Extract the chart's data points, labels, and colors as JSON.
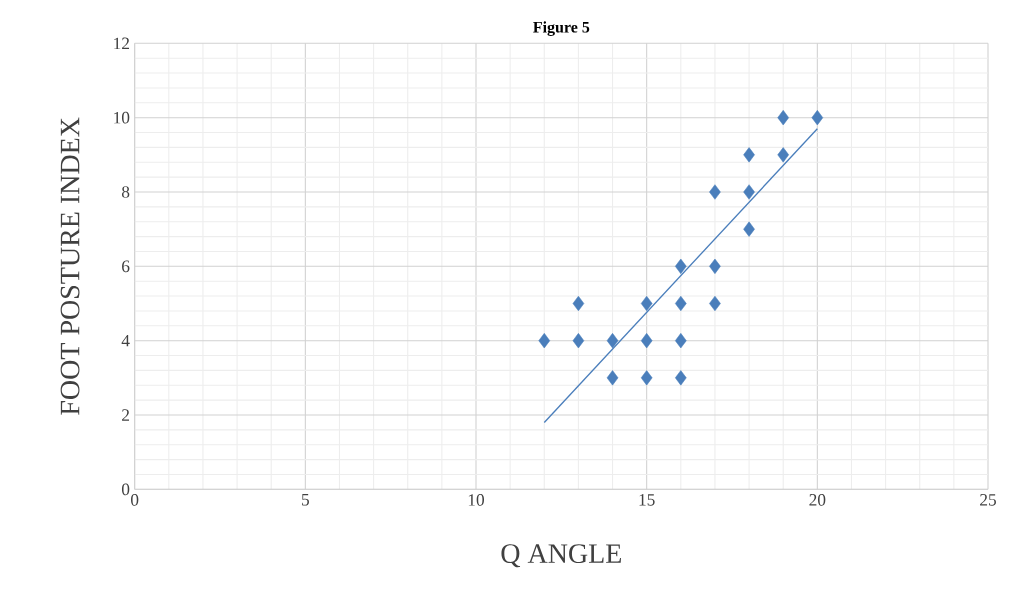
{
  "chart_data": {
    "type": "scatter",
    "title": "Figure 5",
    "xlabel": "Q ANGLE",
    "ylabel": "FOOT POSTURE INDEX",
    "xlim": [
      0,
      25
    ],
    "xticks": [
      0,
      5,
      10,
      15,
      20,
      25
    ],
    "ylim": [
      0,
      12
    ],
    "yticks": [
      0,
      2,
      4,
      6,
      8,
      10,
      12
    ],
    "grid": true,
    "marker": "diamond",
    "series": [
      {
        "color": "#4a7ebb",
        "x": [
          12,
          13,
          13,
          14,
          14,
          15,
          15,
          15,
          16,
          16,
          16,
          16,
          17,
          17,
          17,
          18,
          18,
          18,
          19,
          19,
          20
        ],
        "values": [
          4,
          5,
          4,
          4,
          3,
          5,
          4,
          3,
          6,
          5,
          4,
          3,
          8,
          6,
          5,
          9,
          8,
          7,
          10,
          9,
          10
        ]
      },
      {
        "type": "line",
        "color": "#4a7ebb",
        "x": [
          12,
          20
        ],
        "values": [
          1.8,
          9.7
        ],
        "marker": "none"
      }
    ]
  }
}
